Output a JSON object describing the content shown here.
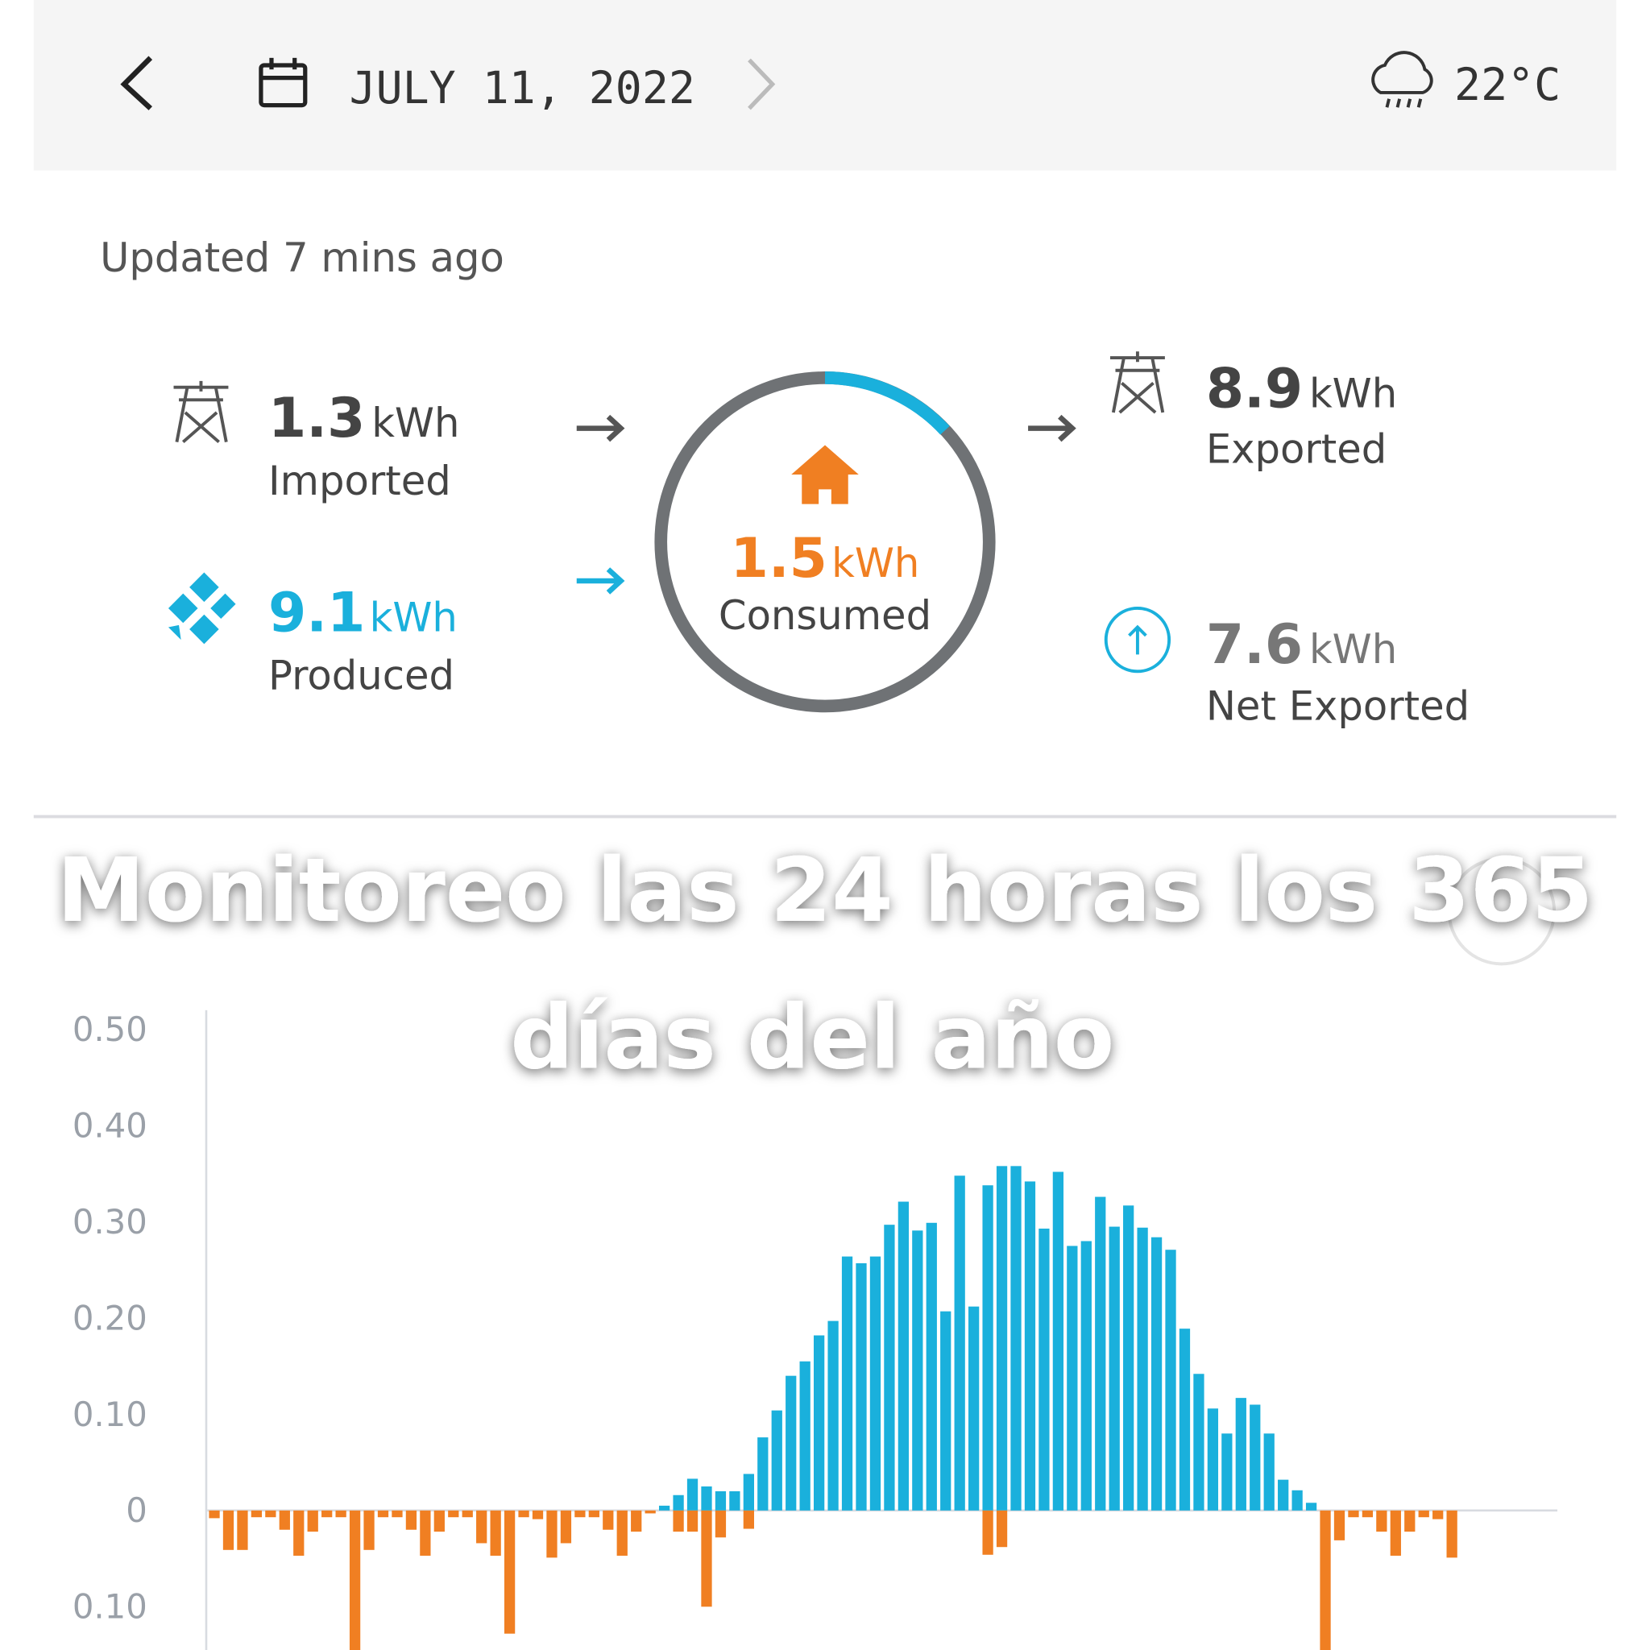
{
  "header": {
    "date": "JULY 11, 2022",
    "temperature": "22°C"
  },
  "updated": "Updated 7 mins ago",
  "stats": {
    "imported": {
      "value": 1.3,
      "unit": "kWh",
      "label": "Imported"
    },
    "produced": {
      "value": 9.1,
      "unit": "kWh",
      "label": "Produced"
    },
    "consumed": {
      "value": 1.5,
      "unit": "kWh",
      "label": "Consumed"
    },
    "exported": {
      "value": 8.9,
      "unit": "kWh",
      "label": "Exported"
    },
    "net_exported": {
      "value": 7.6,
      "unit": "kWh",
      "label": "Net Exported"
    }
  },
  "overlay_text": [
    "Monitoreo las 24 horas los 365",
    "días del año"
  ],
  "chart_data": {
    "type": "bar",
    "series": [
      {
        "color": "#1ab0dc",
        "values": [
          0,
          0,
          0,
          0,
          0,
          0,
          0,
          0,
          0,
          0,
          0,
          0,
          0,
          0,
          0,
          0,
          0,
          0,
          0,
          0,
          0,
          0,
          0,
          0,
          0,
          0,
          0,
          0,
          0,
          0,
          0,
          0,
          0.005,
          0.016,
          0.033,
          0.025,
          0.02,
          0.02,
          0.038,
          0.076,
          0.104,
          0.14,
          0.155,
          0.182,
          0.197,
          0.264,
          0.257,
          0.264,
          0.297,
          0.321,
          0.291,
          0.299,
          0.207,
          0.348,
          0.212,
          0.338,
          0.358,
          0.358,
          0.342,
          0.293,
          0.352,
          0.275,
          0.28,
          0.326,
          0.295,
          0.317,
          0.294,
          0.284,
          0.271,
          0.189,
          0.142,
          0.106,
          0.08,
          0.117,
          0.11,
          0.08,
          0.032,
          0.021,
          0.008,
          0,
          0,
          0,
          0,
          0,
          0,
          0,
          0,
          0,
          0,
          0,
          0,
          0,
          0,
          0,
          0,
          0
        ]
      },
      {
        "color": "#f07f22",
        "values": [
          -0.008,
          -0.041,
          -0.041,
          -0.007,
          -0.007,
          -0.02,
          -0.047,
          -0.022,
          -0.007,
          -0.007,
          -0.15,
          -0.041,
          -0.007,
          -0.007,
          -0.02,
          -0.047,
          -0.022,
          -0.007,
          -0.007,
          -0.034,
          -0.047,
          -0.128,
          -0.007,
          -0.009,
          -0.049,
          -0.034,
          -0.007,
          -0.007,
          -0.02,
          -0.047,
          -0.022,
          -0.003,
          0,
          -0.022,
          -0.022,
          -0.1,
          -0.028,
          0,
          -0.019,
          0,
          0,
          0,
          0,
          0,
          0,
          0,
          0,
          0,
          0,
          0,
          0,
          0,
          0,
          0,
          0,
          -0.046,
          -0.038,
          0,
          0,
          0,
          0,
          0,
          0,
          0,
          0,
          0,
          0,
          0,
          0,
          0,
          0,
          0,
          0,
          0,
          0,
          0,
          0,
          0,
          0,
          -0.15,
          -0.031,
          -0.007,
          -0.007,
          -0.022,
          -0.047,
          -0.022,
          -0.007,
          -0.009,
          -0.049,
          0,
          0,
          0,
          0,
          0,
          0,
          0
        ]
      }
    ],
    "ylim": [
      -0.145,
      0.52
    ],
    "yticks": [
      {
        "value": 0.5,
        "label": "0.50"
      },
      {
        "value": 0.4,
        "label": "0.40"
      },
      {
        "value": 0.3,
        "label": "0.30"
      },
      {
        "value": 0.2,
        "label": "0.20"
      },
      {
        "value": 0.1,
        "label": "0.10"
      },
      0,
      {
        "value": -0.1,
        "label": "0.10"
      }
    ]
  }
}
